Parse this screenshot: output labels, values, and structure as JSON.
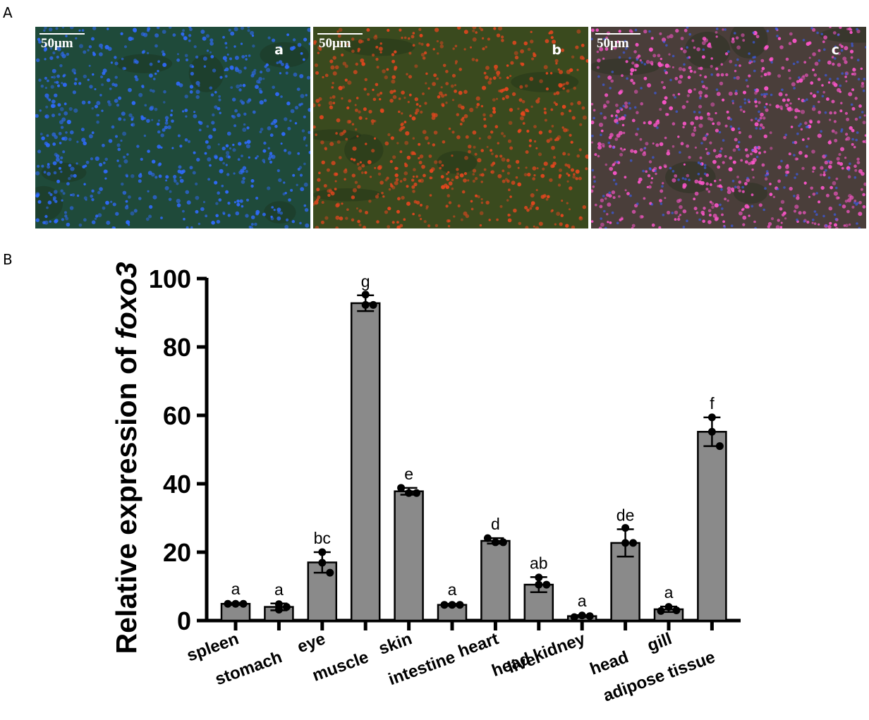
{
  "panel_labels": {
    "a": "A",
    "b": "B"
  },
  "micrographs": [
    {
      "letter": "a",
      "scale": "50μm",
      "stain": "blue-nuclei",
      "base_color": "#1f4a3a",
      "dot_color": "#2f6bff"
    },
    {
      "letter": "b",
      "scale": "50μm",
      "stain": "red-signal",
      "base_color": "#3a4a1e",
      "dot_color": "#e8461e"
    },
    {
      "letter": "c",
      "scale": "50μm",
      "stain": "merge",
      "base_color": "#4a3e3a",
      "dot_color": "#ff55cc"
    }
  ],
  "chart_data": {
    "type": "bar",
    "ylabel_prefix": "Relative expression of",
    "ylabel_gene": "foxo3",
    "ylim": [
      0,
      100
    ],
    "yticks": [
      0,
      20,
      40,
      60,
      80,
      100
    ],
    "categories": [
      "spleen",
      "stomach",
      "eye",
      "muscle",
      "skin",
      "intestine",
      "heart",
      "liver",
      "head kidney",
      "head",
      "gill",
      "adipose tissue"
    ],
    "values": [
      4.9,
      4.0,
      17.0,
      92.8,
      37.8,
      4.6,
      23.3,
      10.5,
      1.3,
      22.7,
      3.3,
      55.2
    ],
    "errors": [
      0.3,
      1.0,
      3.0,
      2.3,
      1.0,
      0.3,
      0.8,
      2.2,
      0.3,
      4.0,
      0.8,
      4.2
    ],
    "points": [
      [
        4.9,
        4.9,
        4.9
      ],
      [
        3.2,
        4.8,
        4.0
      ],
      [
        20.0,
        16.9,
        14.0
      ],
      [
        95.3,
        92.3,
        92.3
      ],
      [
        38.8,
        37.3,
        37.3
      ],
      [
        4.6,
        4.6,
        4.6
      ],
      [
        24.1,
        22.9,
        22.9
      ],
      [
        12.6,
        10.5,
        10.5
      ],
      [
        1.0,
        1.5,
        1.3
      ],
      [
        27.1,
        22.7,
        22.7
      ],
      [
        2.8,
        4.0,
        3.0
      ],
      [
        59.4,
        55.2,
        51.0
      ]
    ],
    "letters": [
      "a",
      "a",
      "bc",
      "g",
      "e",
      "a",
      "d",
      "ab",
      "a",
      "de",
      "a",
      "f"
    ],
    "bar_color": "#8a8a8a",
    "grid": false
  }
}
